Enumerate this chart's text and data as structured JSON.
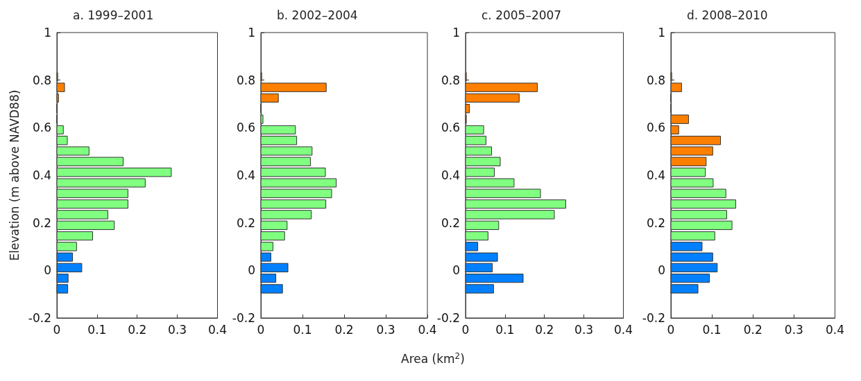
{
  "chart_data": [
    {
      "type": "histogram",
      "orientation": "horizontal",
      "title": "a. 1999–2001",
      "ylabel": "Elevation (m above NAVD88)",
      "bins": [
        -0.1,
        -0.055,
        -0.011,
        0.034,
        0.078,
        0.123,
        0.167,
        0.212,
        0.257,
        0.301,
        0.346,
        0.39,
        0.435,
        0.48,
        0.524,
        0.569,
        0.613,
        0.658,
        0.703,
        0.747,
        0.792,
        0.836
      ],
      "values": [
        0.027,
        0.028,
        0.062,
        0.039,
        0.049,
        0.089,
        0.143,
        0.127,
        0.177,
        0.177,
        0.22,
        0.285,
        0.165,
        0.08,
        0.026,
        0.016,
        0,
        0,
        0.004,
        0.019,
        0.002
      ],
      "colors": [
        "#0080ff",
        "#0080ff",
        "#0080ff",
        "#0080ff",
        "#80ff80",
        "#80ff80",
        "#80ff80",
        "#80ff80",
        "#80ff80",
        "#80ff80",
        "#80ff80",
        "#80ff80",
        "#80ff80",
        "#80ff80",
        "#80ff80",
        "#80ff80",
        "#80ff80",
        "#ff8000",
        "#ff8000",
        "#ff8000",
        "#ff8000"
      ],
      "xlim": [
        0,
        0.4
      ],
      "xticks": [
        0,
        0.1,
        0.2,
        0.3,
        0.4
      ],
      "ylim": [
        -0.2,
        1
      ],
      "yticks": [
        -0.2,
        0,
        0.2,
        0.4,
        0.6,
        0.8,
        1
      ]
    },
    {
      "type": "histogram",
      "orientation": "horizontal",
      "title": "b. 2002–2004",
      "xlabel": "Area (km$^{2}$)",
      "bins": [
        -0.1,
        -0.055,
        -0.011,
        0.034,
        0.078,
        0.123,
        0.167,
        0.212,
        0.257,
        0.301,
        0.346,
        0.39,
        0.435,
        0.48,
        0.524,
        0.569,
        0.613,
        0.658,
        0.703,
        0.747,
        0.792,
        0.836
      ],
      "values": [
        0.052,
        0.036,
        0.065,
        0.024,
        0.029,
        0.057,
        0.063,
        0.121,
        0.156,
        0.17,
        0.181,
        0.155,
        0.119,
        0.123,
        0.086,
        0.083,
        0.005,
        0,
        0.042,
        0.157,
        0.002
      ],
      "colors": [
        "#0080ff",
        "#0080ff",
        "#0080ff",
        "#0080ff",
        "#80ff80",
        "#80ff80",
        "#80ff80",
        "#80ff80",
        "#80ff80",
        "#80ff80",
        "#80ff80",
        "#80ff80",
        "#80ff80",
        "#80ff80",
        "#80ff80",
        "#80ff80",
        "#80ff80",
        "#ff8000",
        "#ff8000",
        "#ff8000",
        "#ff8000"
      ],
      "xlim": [
        0,
        0.4
      ],
      "xticks": [
        0,
        0.1,
        0.2,
        0.3,
        0.4
      ],
      "ylim": [
        -0.2,
        1
      ],
      "yticks": [
        -0.2,
        0,
        0.2,
        0.4,
        0.6,
        0.8,
        1
      ]
    },
    {
      "type": "histogram",
      "orientation": "horizontal",
      "title": "c. 2005–2007",
      "bins": [
        -0.1,
        -0.055,
        -0.011,
        0.034,
        0.078,
        0.123,
        0.167,
        0.212,
        0.257,
        0.301,
        0.346,
        0.39,
        0.435,
        0.48,
        0.524,
        0.569,
        0.613,
        0.658,
        0.703,
        0.747,
        0.792,
        0.836
      ],
      "values": [
        0.071,
        0.146,
        0.068,
        0.081,
        0.031,
        0.057,
        0.084,
        0.225,
        0.254,
        0.19,
        0.123,
        0.073,
        0.088,
        0.066,
        0.052,
        0.046,
        0.002,
        0.01,
        0.136,
        0.182,
        0.002
      ],
      "colors": [
        "#0080ff",
        "#0080ff",
        "#0080ff",
        "#0080ff",
        "#0080ff",
        "#80ff80",
        "#80ff80",
        "#80ff80",
        "#80ff80",
        "#80ff80",
        "#80ff80",
        "#80ff80",
        "#80ff80",
        "#80ff80",
        "#80ff80",
        "#80ff80",
        "#ff8000",
        "#ff8000",
        "#ff8000",
        "#ff8000",
        "#ff8000"
      ],
      "xlim": [
        0,
        0.4
      ],
      "xticks": [
        0,
        0.1,
        0.2,
        0.3,
        0.4
      ],
      "ylim": [
        -0.2,
        1
      ],
      "yticks": [
        -0.2,
        0,
        0.2,
        0.4,
        0.6,
        0.8,
        1
      ]
    },
    {
      "type": "histogram",
      "orientation": "horizontal",
      "title": "d. 2008–2010",
      "bins": [
        -0.1,
        -0.055,
        -0.011,
        0.034,
        0.078,
        0.123,
        0.167,
        0.212,
        0.257,
        0.301,
        0.346,
        0.39,
        0.435,
        0.48,
        0.524,
        0.569,
        0.613,
        0.658,
        0.703,
        0.747,
        0.792,
        0.836
      ],
      "values": [
        0.066,
        0.094,
        0.113,
        0.102,
        0.076,
        0.107,
        0.149,
        0.136,
        0.158,
        0.134,
        0.103,
        0.084,
        0.086,
        0.102,
        0.121,
        0.019,
        0.043,
        0,
        0,
        0.026,
        0.002
      ],
      "colors": [
        "#0080ff",
        "#0080ff",
        "#0080ff",
        "#0080ff",
        "#0080ff",
        "#80ff80",
        "#80ff80",
        "#80ff80",
        "#80ff80",
        "#80ff80",
        "#80ff80",
        "#80ff80",
        "#ff8000",
        "#ff8000",
        "#ff8000",
        "#ff8000",
        "#ff8000",
        "#ff8000",
        "#ff8000",
        "#ff8000",
        "#ff8000"
      ],
      "xlim": [
        0,
        0.4
      ],
      "xticks": [
        0,
        0.1,
        0.2,
        0.3,
        0.4
      ],
      "ylim": [
        -0.2,
        1
      ],
      "yticks": [
        -0.2,
        0,
        0.2,
        0.4,
        0.6,
        0.8,
        1
      ]
    }
  ]
}
